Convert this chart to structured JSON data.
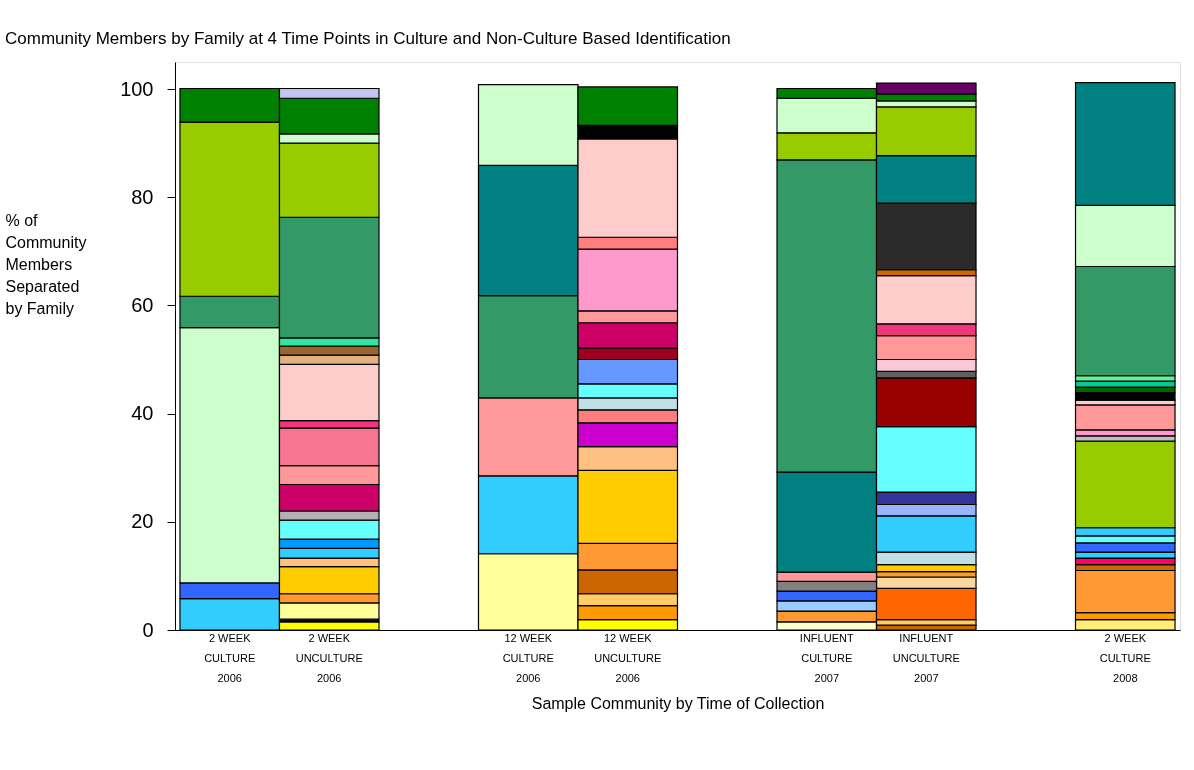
{
  "chart_data": {
    "type": "bar",
    "title": "Community Members by Family at 4 Time Points in Culture and Non-Culture Based Identification",
    "xlabel": "Sample Community by Time of Collection",
    "ylabel": "% of Community Members Separated by Family",
    "stacked": true,
    "grid": false,
    "ylim": [
      0,
      105
    ],
    "yticks": [
      0,
      20,
      40,
      60,
      80,
      100
    ],
    "categories": [
      "2 WEEK CULTURE 2006",
      "2 WEEK UNCULTURE 2006",
      null,
      "12 WEEK CULTURE 2006",
      "12 WEEK UNCULTURE 2006",
      null,
      "INFLUENT CULTURE 2007",
      "INFLUENT UNCULTURE 2007",
      null,
      "2 WEEK CULTURE 2008"
    ],
    "series": [
      {
        "values": [
          5.8,
          1.5,
          null,
          14.1,
          1.9,
          null,
          1.5,
          0.9,
          null,
          1.9
        ],
        "colors": [
          "#33ccff",
          "#ffff00",
          null,
          "#ffff99",
          "#ffff00",
          null,
          "#ffffcc",
          "#cc6600",
          null,
          "#ffee77"
        ]
      },
      {
        "values": [
          2.9,
          0.5,
          null,
          14.4,
          2.6,
          null,
          2.0,
          1.0,
          null,
          1.3
        ],
        "colors": [
          "#3366ff",
          "#000000",
          null,
          "#33ccff",
          "#ff9900",
          null,
          "#ff9933",
          "#ffcc66",
          null,
          "#ff9900"
        ]
      },
      {
        "values": [
          47.2,
          3.0,
          null,
          14.4,
          2.2,
          null,
          1.9,
          5.8,
          null,
          7.8
        ],
        "colors": [
          "#ccffcc",
          "#ffff99",
          null,
          "#ff9999",
          "#ffcc66",
          null,
          "#99ccff",
          "#ff6600",
          null,
          "#ff9933"
        ]
      },
      {
        "values": [
          5.8,
          1.7,
          null,
          18.9,
          4.4,
          null,
          1.8,
          2.1,
          null,
          1.1
        ],
        "colors": [
          "#339966",
          "#ff9933",
          null,
          "#339966",
          "#cc6600",
          null,
          "#3366ff",
          "#fad7a0",
          null,
          "#cc6600"
        ]
      },
      {
        "values": [
          32.2,
          5.0,
          null,
          24.1,
          4.9,
          null,
          1.8,
          1.0,
          null,
          1.2
        ],
        "colors": [
          "#99cc00",
          "#ffcc00",
          null,
          "#008080",
          "#ff9933",
          null,
          "#808080",
          "#ff9933",
          null,
          "#ff0066"
        ]
      },
      {
        "values": [
          6.2,
          1.6,
          null,
          14.9,
          13.5,
          null,
          1.7,
          1.3,
          null,
          1.1
        ],
        "colors": [
          "#008000",
          "#ffc080",
          null,
          "#ccffcc",
          "#ffcc00",
          null,
          "#ff9999",
          "#ffcc00",
          null,
          "#33ccff"
        ]
      },
      {
        "values": [
          null,
          1.8,
          null,
          null,
          4.4,
          null,
          18.5,
          2.3,
          null,
          1.7
        ],
        "colors": [
          null,
          "#33ccff",
          null,
          null,
          "#ffc080",
          null,
          "#008080",
          "#bfe0e4",
          null,
          "#3366ff"
        ]
      },
      {
        "values": [
          null,
          1.7,
          null,
          null,
          4.4,
          null,
          57.7,
          6.7,
          null,
          1.3
        ],
        "colors": [
          null,
          "#0099ff",
          null,
          null,
          "#cc00cc",
          null,
          "#339966",
          "#33ccff",
          null,
          "#66ffff"
        ]
      },
      {
        "values": [
          null,
          3.5,
          null,
          null,
          2.4,
          null,
          5.0,
          2.1,
          null,
          1.5
        ],
        "colors": [
          null,
          "#66ffff",
          null,
          null,
          "#ff7f7f",
          null,
          "#99cc00",
          "#99b3ff",
          null,
          "#33ccff"
        ]
      },
      {
        "values": [
          null,
          1.7,
          null,
          null,
          2.2,
          null,
          6.4,
          2.3,
          null,
          16.0
        ],
        "colors": [
          null,
          "#b2b2b2",
          null,
          null,
          "#bfe0e4",
          null,
          "#ccffcc",
          "#333399",
          null,
          "#99cc00"
        ]
      },
      {
        "values": [
          null,
          4.9,
          null,
          null,
          2.6,
          null,
          1.8,
          12.1,
          null,
          1.0
        ],
        "colors": [
          null,
          "#cc0066",
          null,
          null,
          "#66ffff",
          null,
          "#008000",
          "#66ffff",
          null,
          "#c0c0c0"
        ]
      },
      {
        "values": [
          null,
          3.5,
          null,
          null,
          4.5,
          null,
          null,
          9.0,
          null,
          1.1
        ],
        "colors": [
          null,
          "#ff9999",
          null,
          null,
          "#6699ff",
          null,
          null,
          "#990000",
          null,
          "#ff99cc"
        ]
      },
      {
        "values": [
          null,
          6.9,
          null,
          null,
          2.1,
          null,
          null,
          1.2,
          null,
          4.6
        ],
        "colors": [
          null,
          "#f77591",
          null,
          null,
          "#a00020",
          null,
          null,
          "#606060",
          null,
          "#ff9999"
        ]
      },
      {
        "values": [
          null,
          1.4,
          null,
          null,
          4.7,
          null,
          null,
          2.2,
          null,
          0.9
        ],
        "colors": [
          null,
          "#f0357a",
          null,
          null,
          "#cc0066",
          null,
          null,
          "#f9c9da",
          null,
          "#ffcccc"
        ]
      },
      {
        "values": [
          null,
          10.4,
          null,
          null,
          2.2,
          null,
          null,
          4.4,
          null,
          1.4
        ],
        "colors": [
          null,
          "#ffcccc",
          null,
          null,
          "#ff9999",
          null,
          null,
          "#ff9999",
          null,
          "#000000"
        ]
      },
      {
        "values": [
          null,
          1.7,
          null,
          null,
          11.4,
          null,
          null,
          2.2,
          null,
          1.0
        ],
        "colors": [
          null,
          "#e3b080",
          null,
          null,
          "#ff99cc",
          null,
          null,
          "#f0357a",
          null,
          "#006600"
        ]
      },
      {
        "values": [
          null,
          1.7,
          null,
          null,
          2.2,
          null,
          null,
          8.9,
          null,
          1.1
        ],
        "colors": [
          null,
          "#996633",
          null,
          null,
          "#ff7f7f",
          null,
          null,
          "#ffcccc",
          null,
          "#00cc99"
        ]
      },
      {
        "values": [
          null,
          1.5,
          null,
          null,
          18.2,
          null,
          null,
          1.1,
          null,
          1.0
        ],
        "colors": [
          null,
          "#33e6a0",
          null,
          null,
          "#ffcccc",
          null,
          null,
          "#cc6600",
          null,
          "#66ee99"
        ]
      },
      {
        "values": [
          null,
          22.3,
          null,
          null,
          2.5,
          null,
          null,
          12.3,
          null,
          20.2
        ],
        "colors": [
          null,
          "#339966",
          null,
          null,
          "#000000",
          null,
          null,
          "#2b2b2b",
          null,
          "#339966"
        ]
      },
      {
        "values": [
          null,
          13.7,
          null,
          null,
          7.1,
          null,
          null,
          8.8,
          null,
          11.3
        ],
        "colors": [
          null,
          "#99cc00",
          null,
          null,
          "#008000",
          null,
          null,
          "#008080",
          null,
          "#ccffcc"
        ]
      },
      {
        "values": [
          null,
          1.7,
          null,
          null,
          null,
          null,
          null,
          9.0,
          null,
          22.7
        ],
        "colors": [
          null,
          "#ccffcc",
          null,
          null,
          null,
          null,
          null,
          "#99cc00",
          null,
          "#008080"
        ]
      },
      {
        "values": [
          null,
          6.6,
          null,
          null,
          null,
          null,
          null,
          1.1,
          null,
          null
        ],
        "colors": [
          null,
          "#008000",
          null,
          null,
          null,
          null,
          null,
          "#ccffcc",
          null,
          null
        ]
      },
      {
        "values": [
          null,
          1.8,
          null,
          null,
          null,
          null,
          null,
          1.3,
          null,
          null
        ],
        "colors": [
          null,
          "#c0c6f0",
          null,
          null,
          null,
          null,
          null,
          "#008000",
          null,
          null
        ]
      },
      {
        "values": [
          null,
          null,
          null,
          null,
          null,
          null,
          null,
          2.0,
          null,
          null
        ],
        "colors": [
          null,
          null,
          null,
          null,
          null,
          null,
          null,
          "#660066",
          null,
          null
        ]
      }
    ]
  }
}
